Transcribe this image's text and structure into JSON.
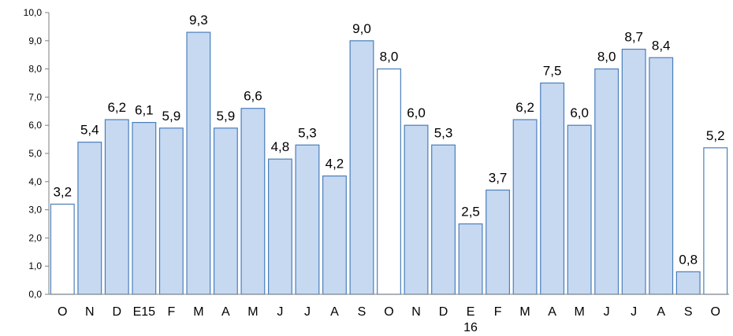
{
  "chart_data": {
    "type": "bar",
    "categories": [
      "O",
      "N",
      "D",
      "E15",
      "F",
      "M",
      "A",
      "M",
      "J",
      "J",
      "A",
      "S",
      "O",
      "N",
      "D",
      "E\n16",
      "F",
      "M",
      "A",
      "M",
      "J",
      "J",
      "A",
      "S",
      "O"
    ],
    "values": [
      3.2,
      5.4,
      6.2,
      6.1,
      5.9,
      9.3,
      5.9,
      6.6,
      4.8,
      5.3,
      4.2,
      9.0,
      8.0,
      6.0,
      5.3,
      2.5,
      3.7,
      6.2,
      7.5,
      6.0,
      8.0,
      8.7,
      8.4,
      0.8,
      5.2
    ],
    "data_labels": [
      "3,2",
      "5,4",
      "6,2",
      "6,1",
      "5,9",
      "9,3",
      "5,9",
      "6,6",
      "4,8",
      "5,3",
      "4,2",
      "9,0",
      "8,0",
      "6,0",
      "5,3",
      "2,5",
      "3,7",
      "6,2",
      "7,5",
      "6,0",
      "8,0",
      "8,7",
      "8,4",
      "0,8",
      "5,2"
    ],
    "highlighted_indices": [
      0,
      12,
      24
    ],
    "y_ticks": [
      "0,0",
      "1,0",
      "2,0",
      "3,0",
      "4,0",
      "5,0",
      "6,0",
      "7,0",
      "8,0",
      "9,0",
      "10,0"
    ],
    "ylim": [
      0,
      10
    ],
    "grid": false,
    "title": "",
    "xlabel": "",
    "ylabel": "",
    "colors": {
      "bar_fill": "#c6d9f1",
      "bar_highlight_fill": "#ffffff",
      "bar_stroke": "#4a7ebb",
      "axis": "#7f7f7f"
    }
  }
}
